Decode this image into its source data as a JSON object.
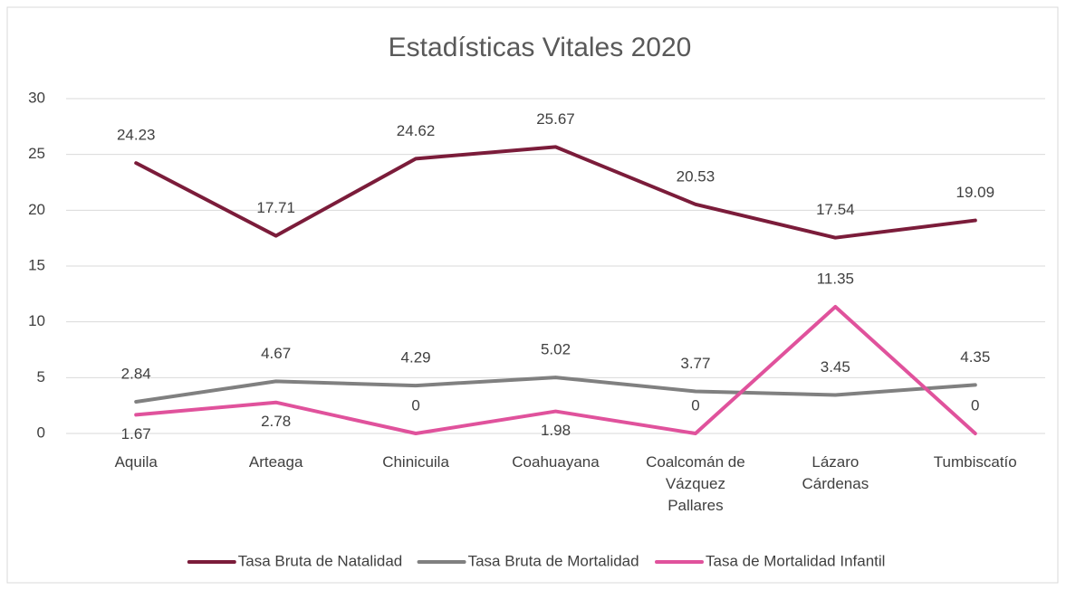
{
  "chart_data": {
    "type": "line",
    "title": "Estadísticas Vitales 2020",
    "categories": [
      "Aquila",
      "Arteaga",
      "Chinicuila",
      "Coahuayana",
      "Coalcomán de Vázquez Pallares",
      "Lázaro Cárdenas",
      "Tumbiscatío"
    ],
    "series": [
      {
        "name": "Tasa Bruta de Natalidad",
        "color": "#7b1c3a",
        "values": [
          24.23,
          17.71,
          24.62,
          25.67,
          20.53,
          17.54,
          19.09
        ]
      },
      {
        "name": "Tasa Bruta de Mortalidad",
        "color": "#808080",
        "values": [
          2.84,
          4.67,
          4.29,
          5.02,
          3.77,
          3.45,
          4.35
        ]
      },
      {
        "name": "Tasa de Mortalidad Infantil",
        "color": "#e0529c",
        "values": [
          1.67,
          2.78,
          0,
          1.98,
          0,
          11.35,
          0
        ]
      }
    ],
    "ylim": [
      0,
      30
    ],
    "yticks": [
      0,
      5,
      10,
      15,
      20,
      25,
      30
    ],
    "grid": true,
    "legend": "bottom"
  }
}
